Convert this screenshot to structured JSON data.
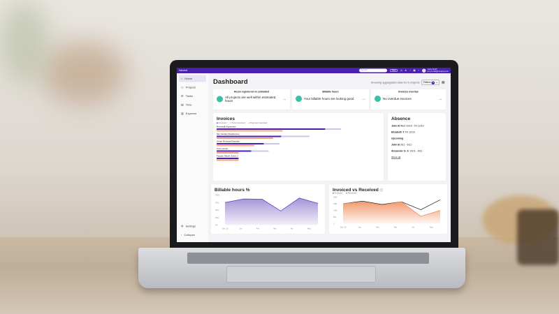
{
  "app": {
    "brand": "Harvest",
    "search_placeholder": "Search",
    "help_label": "Help",
    "user_name": "Jenny Smith",
    "user_sub": "jenny.smith@company.com"
  },
  "sidebar": {
    "items": [
      {
        "label": "Home",
        "icon": "home-icon"
      },
      {
        "label": "Projects",
        "icon": "folder-icon"
      },
      {
        "label": "Tasks",
        "icon": "list-icon"
      },
      {
        "label": "Time",
        "icon": "calendar-icon"
      },
      {
        "label": "Expense",
        "icon": "receipt-icon"
      }
    ],
    "settings": "Settings",
    "collapse": "Collapse"
  },
  "header": {
    "title": "Dashboard",
    "aggregate": "Showing aggregated data for 5 projects",
    "filters": "Filters",
    "filter_count": "1"
  },
  "kpis": [
    {
      "title": "Hours registered vs estimated",
      "text": "All projects are well within estimated hours"
    },
    {
      "title": "Billable hours",
      "text": "Your billable hours are looking good"
    },
    {
      "title": "Invoices overdue",
      "text": "No overdue invoices"
    }
  ],
  "invoices": {
    "title": "Invoices",
    "legend": [
      "Invoiced",
      "To be invoiced",
      "Payment received"
    ],
    "colors": [
      "#4b1fb0",
      "#c7c9ec",
      "#f4a57c"
    ],
    "projects": [
      {
        "name": "Riverwalk Expansion",
        "invoiced": 0.69,
        "to_be": 0.1,
        "received": 0.42
      },
      {
        "name": "Sky Garden Residences",
        "invoiced": 0.41,
        "to_be": 0.18,
        "received": 0.36
      },
      {
        "name": "Urban Renewal Eastside",
        "invoiced": 0.3,
        "to_be": 0.1,
        "received": 0.24
      },
      {
        "name": "Civic Center",
        "invoiced": 0.22,
        "to_be": 0.11,
        "received": 0.14
      },
      {
        "name": "Facade Wayfe Street 2",
        "invoiced": 0.14,
        "to_be": 0,
        "received": 0.14
      }
    ]
  },
  "absence": {
    "title": "Absence",
    "current": [
      {
        "name": "John B",
        "dates": "Wed 10/10 - Fri 12/10"
      },
      {
        "name": "Elizabeth T.",
        "dates": "Fri 12/10"
      }
    ],
    "upcoming_label": "Upcoming",
    "upcoming": [
      {
        "name": "John B",
        "dates": "3/11 - 6/11"
      },
      {
        "name": "Alexander G. F.",
        "dates": "13/11 - 6/11"
      }
    ],
    "show_all": "Show all"
  },
  "chart_data": [
    {
      "type": "area",
      "title": "Billable hours %",
      "categories": [
        "Dec '23",
        "Jan",
        "Feb",
        "Mar",
        "Apr",
        "May"
      ],
      "yticks": [
        "0%",
        "25%",
        "50%",
        "75%",
        "100%"
      ],
      "ylim": [
        0,
        100
      ],
      "series": [
        {
          "values": [
            75,
            87,
            86,
            47,
            90,
            72
          ],
          "color": "#5a3bb5"
        }
      ]
    },
    {
      "type": "area",
      "title": "Invoiced vs Received",
      "categories": [
        "Dec '23",
        "Jan",
        "Feb",
        "Mar",
        "Apr",
        "May"
      ],
      "yticks": [
        "0",
        "50k",
        "100k",
        "150k",
        "200k"
      ],
      "ylim": [
        0,
        200
      ],
      "series": [
        {
          "name": "Invoiced",
          "values": [
            150,
            170,
            145,
            165,
            105,
            180
          ],
          "color": "#222222"
        },
        {
          "name": "Received",
          "values": [
            150,
            165,
            140,
            165,
            55,
            100
          ],
          "color": "#ef8a57"
        }
      ]
    }
  ]
}
